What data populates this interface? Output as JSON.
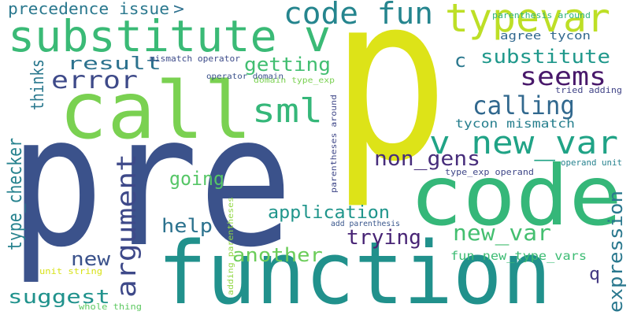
{
  "words": [
    "pre",
    "p",
    "function",
    "code",
    "call",
    "substitute v",
    "typevar",
    "code fun",
    "precedence issue",
    ">",
    "sml",
    "error",
    "result",
    "getting",
    "seems",
    "c",
    "substitute",
    "calling",
    "v new_var",
    "non_gens",
    "thinks",
    "type_checker",
    "argument",
    "going",
    "help",
    "application",
    "trying",
    "new_var",
    "another",
    "new",
    "suggest",
    "expression",
    "q",
    "fun new_type_vars",
    "tycon mismatch",
    "agree tycon",
    "parenthesis around",
    "tried adding",
    "mismatch operator",
    "operator domain",
    "domain type_exp",
    "type_exp operand",
    "operand unit",
    "add parenthesis",
    "parentheses around",
    "adding parentheses",
    "unit string",
    "whole thing"
  ]
}
